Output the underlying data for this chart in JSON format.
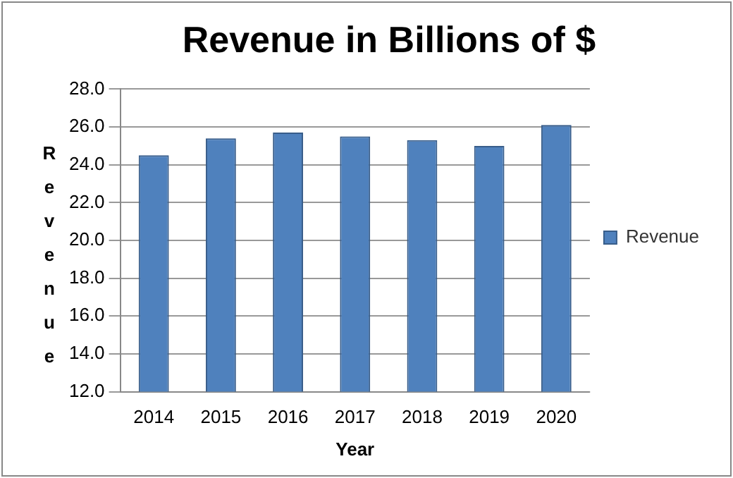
{
  "chart_data": {
    "type": "bar",
    "title": "Revenue in Billions of $",
    "xlabel": "Year",
    "ylabel": "Revenue",
    "categories": [
      "2014",
      "2015",
      "2016",
      "2017",
      "2018",
      "2019",
      "2020"
    ],
    "series": [
      {
        "name": "Revenue",
        "color": "#4f81bd",
        "values": [
          24.5,
          25.4,
          25.7,
          25.5,
          25.3,
          25.0,
          26.1
        ]
      }
    ],
    "ylim": [
      12,
      28
    ],
    "yticks": [
      {
        "value": 12,
        "label": "12.0"
      },
      {
        "value": 14,
        "label": "14.0"
      },
      {
        "value": 16,
        "label": "16.0"
      },
      {
        "value": 18,
        "label": "18.0"
      },
      {
        "value": 20,
        "label": "20.0"
      },
      {
        "value": 22,
        "label": "22.0"
      },
      {
        "value": 24,
        "label": "24.0"
      },
      {
        "value": 26,
        "label": "26.0"
      },
      {
        "value": 28,
        "label": "28.0"
      }
    ],
    "grid": "y",
    "legend": "right"
  }
}
